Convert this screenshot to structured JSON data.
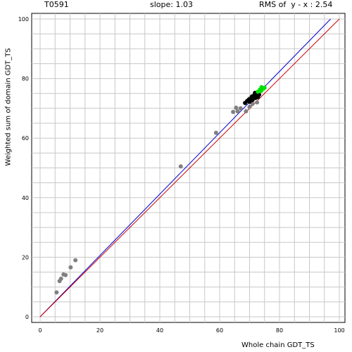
{
  "header": {
    "target": "T0591",
    "slope": "slope: 1.03",
    "rms": "RMS of  y - x : 2.54"
  },
  "chart_data": {
    "type": "scatter",
    "title": "",
    "xlabel": "Whole chain GDT_TS",
    "ylabel": "Weighted sum of domain GDT_TS",
    "xlim": [
      0,
      100
    ],
    "ylim": [
      0,
      100
    ],
    "x_ticks": [
      0,
      20,
      40,
      60,
      80,
      100
    ],
    "y_ticks": [
      0,
      20,
      40,
      60,
      80,
      100
    ],
    "grid": true,
    "lines": [
      {
        "name": "",
        "color": "#0000cc",
        "slope": 1.03,
        "intercept": 0
      },
      {
        "name": "",
        "color": "#cc0000",
        "slope": 1.0,
        "intercept": 0
      }
    ],
    "series": [
      {
        "color": "#808080",
        "points": [
          [
            5.5,
            8.2
          ],
          [
            6.5,
            12.0
          ],
          [
            7.0,
            12.8
          ],
          [
            7.8,
            14.2
          ],
          [
            8.5,
            14.0
          ],
          [
            10.2,
            16.6
          ],
          [
            11.8,
            19.0
          ],
          [
            47.0,
            50.5
          ],
          [
            58.8,
            61.8
          ],
          [
            64.5,
            68.8
          ],
          [
            65.5,
            70.2
          ],
          [
            66.0,
            69.0
          ],
          [
            67.0,
            70.0
          ],
          [
            68.8,
            69.0
          ],
          [
            70.0,
            70.5
          ],
          [
            71.0,
            71.5
          ],
          [
            70.2,
            73.5
          ],
          [
            72.5,
            72.0
          ]
        ]
      },
      {
        "color": "#000000",
        "points": [
          [
            68.5,
            71.8
          ],
          [
            69.2,
            72.5
          ],
          [
            69.8,
            73.0
          ],
          [
            70.5,
            73.2
          ],
          [
            71.0,
            72.8
          ],
          [
            70.8,
            74.0
          ],
          [
            71.5,
            74.3
          ],
          [
            72.0,
            73.5
          ],
          [
            72.3,
            74.8
          ],
          [
            71.8,
            75.2
          ],
          [
            72.8,
            73.8
          ],
          [
            73.2,
            74.6
          ],
          [
            70.0,
            72.2
          ],
          [
            71.2,
            73.9
          ]
        ]
      },
      {
        "color": "#00e000",
        "points": [
          [
            72.8,
            75.6
          ],
          [
            73.5,
            76.3
          ],
          [
            74.0,
            77.1
          ],
          [
            74.5,
            76.6
          ],
          [
            75.0,
            76.9
          ],
          [
            73.9,
            75.9
          ]
        ]
      }
    ]
  }
}
